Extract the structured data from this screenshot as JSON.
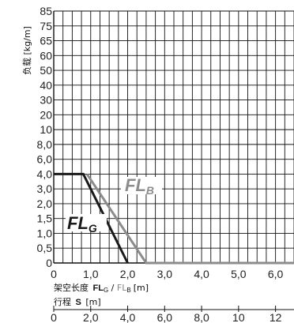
{
  "chart_data": {
    "type": "line",
    "y_axis": {
      "label": "负载 [kg/m]",
      "ticks": [
        "0",
        "0,5",
        "1,0",
        "1,5",
        "2,0",
        "3,0",
        "4,0",
        "6,0",
        "8,0",
        "10",
        "20",
        "30",
        "40",
        "50",
        "60",
        "65",
        "75",
        "85"
      ]
    },
    "x_axis_primary": {
      "label_prefix": "架空长度",
      "label_fl": "FL",
      "label_sub_g": "G",
      "label_sep": " / ",
      "label_sub_b": "B",
      "label_unit": "[m]",
      "range": [
        0,
        6.5
      ],
      "ticks": [
        {
          "v": 0,
          "t": "0"
        },
        {
          "v": 1,
          "t": "1,0"
        },
        {
          "v": 2,
          "t": "2,0"
        },
        {
          "v": 3,
          "t": "3,0"
        },
        {
          "v": 4,
          "t": "4,0"
        },
        {
          "v": 5,
          "t": "5,0"
        },
        {
          "v": 6,
          "t": "6,0"
        }
      ]
    },
    "x_axis_secondary": {
      "label_prefix": "行程",
      "label_s": "S",
      "label_unit": "[m]",
      "ticks": [
        {
          "v": 0,
          "t": "0"
        },
        {
          "v": 2,
          "t": "2,0"
        },
        {
          "v": 4,
          "t": "4,0"
        },
        {
          "v": 6,
          "t": "6,0"
        },
        {
          "v": 8,
          "t": "8,0"
        },
        {
          "v": 10,
          "t": "10"
        },
        {
          "v": 12,
          "t": "12"
        }
      ]
    },
    "series": [
      {
        "name": "FLG",
        "label_main": "FL",
        "label_sub": "G",
        "color": "#1a1a1a",
        "points": [
          {
            "x": 0,
            "y": "4,0"
          },
          {
            "x": 0.8,
            "y": "4,0"
          },
          {
            "x": 2.0,
            "y": "0"
          }
        ]
      },
      {
        "name": "FLB",
        "label_main": "FL",
        "label_sub": "B",
        "color": "#8c8c8c",
        "points": [
          {
            "x": 0.9,
            "y": "4,0"
          },
          {
            "x": 2.5,
            "y": "0"
          },
          {
            "x": 6.5,
            "y": "0"
          }
        ]
      }
    ],
    "grid": true
  }
}
